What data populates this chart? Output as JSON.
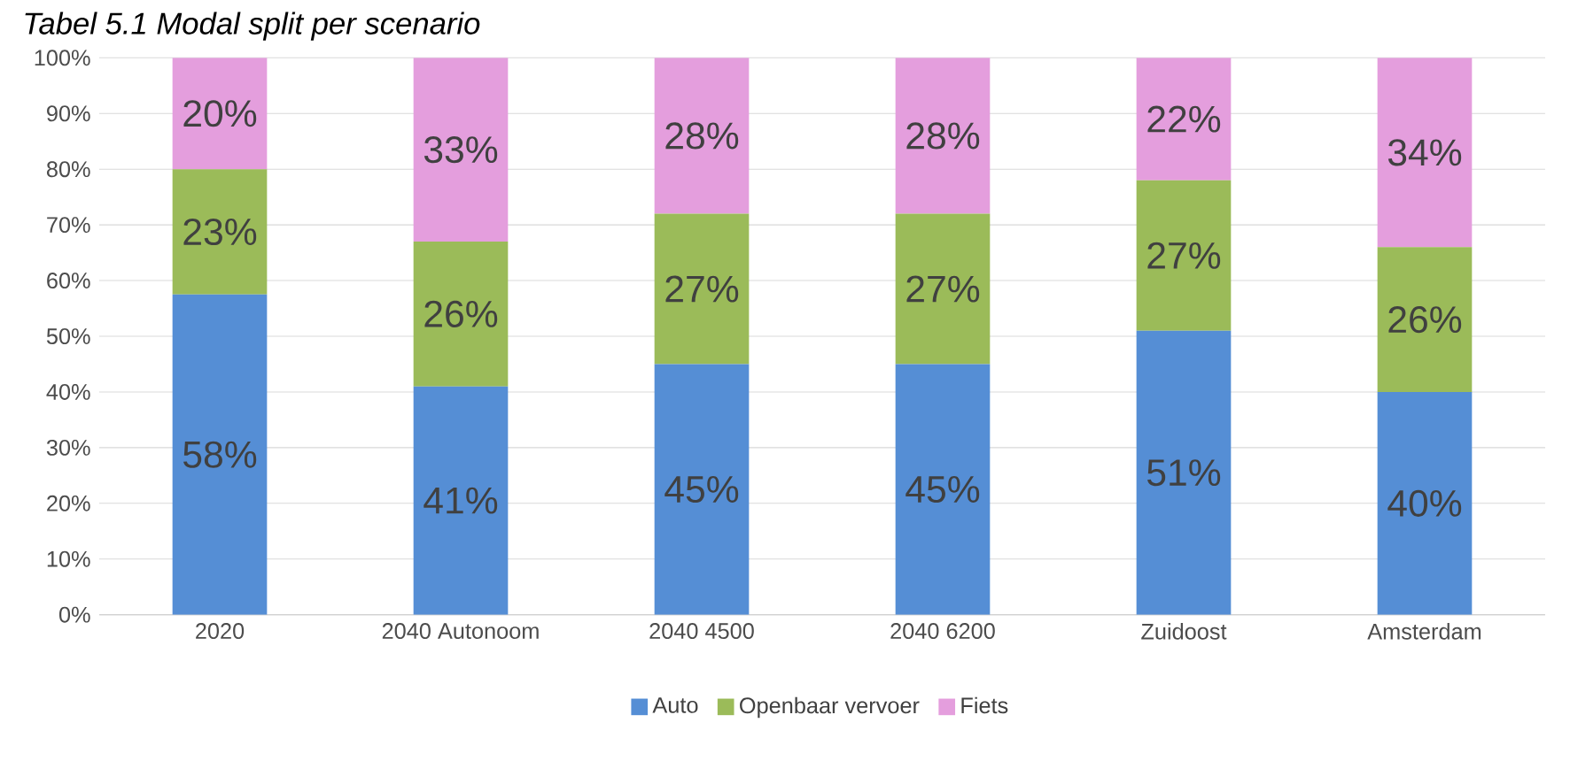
{
  "chart_data": {
    "type": "bar",
    "stacked": true,
    "title": "*Tabel 5.1 Modal split per scenario*",
    "categories": [
      "2020",
      "2040 Autonoom",
      "2040 4500",
      "2040 6200",
      "Zuidoost",
      "Amsterdam"
    ],
    "series": [
      {
        "name": "Auto",
        "color": "#558ed5",
        "values": [
          57.5,
          41,
          45,
          45,
          51,
          40
        ],
        "value_labels": [
          "58%",
          "41%",
          "45%",
          "45%",
          "51%",
          "40%"
        ]
      },
      {
        "name": "Openbaar vervoer",
        "color": "#9bbb59",
        "values": [
          22.5,
          26,
          27,
          27,
          27,
          26
        ],
        "value_labels": [
          "23%",
          "26%",
          "27%",
          "27%",
          "27%",
          "26%"
        ]
      },
      {
        "name": "Fiets",
        "color": "#e49edd",
        "values": [
          20,
          33,
          28,
          28,
          22,
          34
        ],
        "value_labels": [
          "20%",
          "33%",
          "28%",
          "28%",
          "22%",
          "34%"
        ]
      }
    ],
    "ylim": [
      0,
      100
    ],
    "yticks": [
      {
        "value": 0,
        "label": "0%"
      },
      {
        "value": 10,
        "label": "10%"
      },
      {
        "value": 20,
        "label": "20%"
      },
      {
        "value": 30,
        "label": "30%"
      },
      {
        "value": 40,
        "label": "40%"
      },
      {
        "value": 50,
        "label": "50%"
      },
      {
        "value": 60,
        "label": "60%"
      },
      {
        "value": 70,
        "label": "70%"
      },
      {
        "value": 80,
        "label": "80%"
      },
      {
        "value": 90,
        "label": "90%"
      },
      {
        "value": 100,
        "label": "100%"
      }
    ],
    "grid": "y",
    "legend": "bottom"
  }
}
